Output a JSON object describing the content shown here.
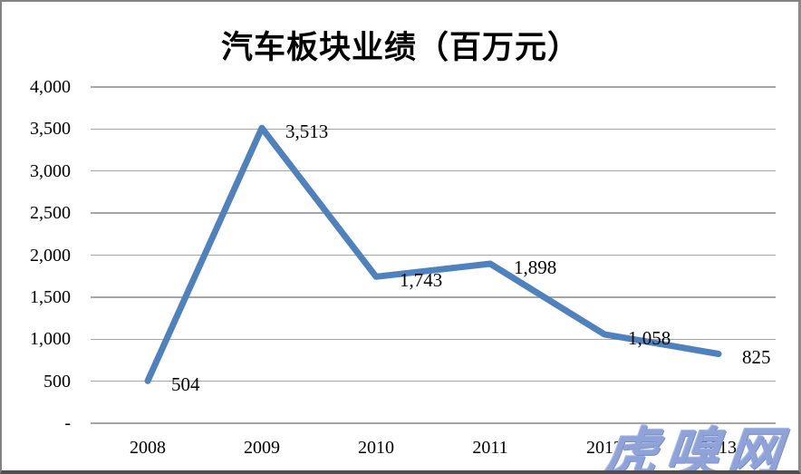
{
  "title": "汽车板块业绩（百万元）",
  "watermark": {
    "text": "虎嗅网",
    "color": "#8fa3d9"
  },
  "colors": {
    "series_line": "#4f81bd",
    "gridline": "#a6a6a6",
    "frame": "#828282",
    "text": "#000000",
    "watermark": "#8fa3d9",
    "background": "#ffffff"
  },
  "chart_data": {
    "type": "line",
    "title": "汽车板块业绩（百万元）",
    "categories": [
      "2008",
      "2009",
      "2010",
      "2011",
      "2012",
      "2013"
    ],
    "values": [
      504,
      3513,
      1743,
      1898,
      1058,
      825
    ],
    "data_labels": [
      "504",
      "3,513",
      "1,743",
      "1,898",
      "1,058",
      "825"
    ],
    "xlabel": "",
    "ylabel": "",
    "ylim": [
      0,
      4000
    ],
    "y_ticks": [
      {
        "value": 4000,
        "label": "4,000"
      },
      {
        "value": 3500,
        "label": "3,500"
      },
      {
        "value": 3000,
        "label": "3,000"
      },
      {
        "value": 2500,
        "label": "2,500"
      },
      {
        "value": 2000,
        "label": "2,000"
      },
      {
        "value": 1500,
        "label": "1,500"
      },
      {
        "value": 1000,
        "label": "1,000"
      },
      {
        "value": 500,
        "label": "500"
      },
      {
        "value": 0,
        "label": "-"
      }
    ],
    "grid": true,
    "legend": false,
    "line_width": 7
  }
}
